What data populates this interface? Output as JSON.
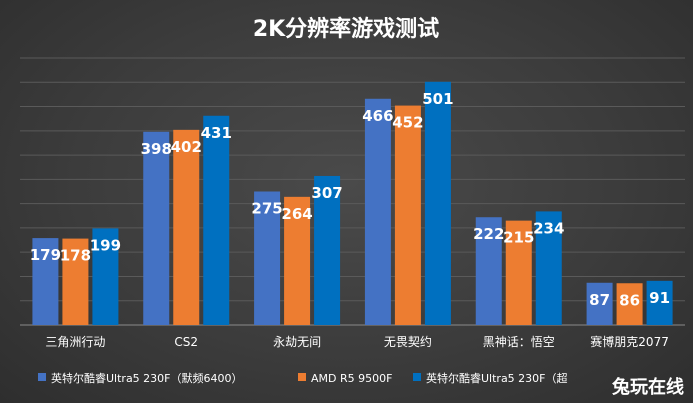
{
  "colors": {
    "series": [
      "#4472c4",
      "#ed7d31",
      "#0070c0"
    ],
    "text": "#ffffff",
    "grid": "#5a5a5a"
  },
  "watermark": "兔玩在线",
  "chart_data": {
    "type": "bar",
    "title": "2K分辨率游戏测试",
    "categories": [
      "三角洲行动",
      "CS2",
      "永劫无间",
      "无畏契约",
      "黑神话：悟空",
      "赛博朋克2077"
    ],
    "series": [
      {
        "name": "英特尔酷睿Ultra5 230F（默频6400）",
        "values": [
          179,
          398,
          275,
          466,
          222,
          87
        ]
      },
      {
        "name": "AMD R5 9500F",
        "values": [
          178,
          402,
          264,
          452,
          215,
          86
        ]
      },
      {
        "name": "英特尔酷睿Ultra5 230F（超",
        "values": [
          199,
          431,
          307,
          501,
          234,
          91
        ]
      }
    ],
    "ylim": [
      0,
      550
    ],
    "grid": true,
    "legend": "bottom",
    "xlabel": "",
    "ylabel": ""
  }
}
